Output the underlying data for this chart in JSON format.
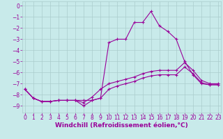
{
  "xlabel": "Windchill (Refroidissement éolien,°C)",
  "bg_color": "#c8eaea",
  "grid_color": "#aacccc",
  "line_color": "#990099",
  "x_ticks": [
    0,
    1,
    2,
    3,
    4,
    5,
    6,
    7,
    8,
    9,
    10,
    11,
    12,
    13,
    14,
    15,
    16,
    17,
    18,
    19,
    20,
    21,
    22,
    23
  ],
  "y_ticks": [
    0,
    -1,
    -2,
    -3,
    -4,
    -5,
    -6,
    -7,
    -8,
    -9
  ],
  "xlim": [
    -0.3,
    23.3
  ],
  "ylim": [
    -9.6,
    0.4
  ],
  "line1_x": [
    0,
    1,
    2,
    3,
    4,
    5,
    6,
    7,
    8,
    9,
    10,
    11,
    12,
    13,
    14,
    15,
    16,
    17,
    18,
    19,
    20,
    21,
    22,
    23
  ],
  "line1_y": [
    -7.5,
    -8.3,
    -8.6,
    -8.6,
    -8.5,
    -8.5,
    -8.5,
    -9.0,
    -8.5,
    -8.3,
    -3.3,
    -3.0,
    -3.0,
    -1.5,
    -1.5,
    -0.5,
    -1.8,
    -2.3,
    -3.0,
    -5.0,
    -6.2,
    -7.0,
    -7.1,
    -7.1
  ],
  "line2_x": [
    0,
    1,
    2,
    3,
    4,
    5,
    6,
    7,
    8,
    9,
    10,
    11,
    12,
    13,
    14,
    15,
    16,
    17,
    18,
    19,
    20,
    21,
    22,
    23
  ],
  "line2_y": [
    -7.5,
    -8.3,
    -8.6,
    -8.6,
    -8.5,
    -8.5,
    -8.5,
    -8.5,
    -8.5,
    -8.3,
    -7.5,
    -7.2,
    -7.0,
    -6.8,
    -6.5,
    -6.3,
    -6.2,
    -6.2,
    -6.2,
    -5.5,
    -6.1,
    -6.9,
    -7.1,
    -7.1
  ],
  "line3_x": [
    0,
    1,
    2,
    3,
    4,
    5,
    6,
    7,
    8,
    9,
    10,
    11,
    12,
    13,
    14,
    15,
    16,
    17,
    18,
    19,
    20,
    21,
    22,
    23
  ],
  "line3_y": [
    -7.5,
    -8.3,
    -8.6,
    -8.6,
    -8.5,
    -8.5,
    -8.5,
    -8.7,
    -8.2,
    -7.5,
    -7.0,
    -6.8,
    -6.6,
    -6.4,
    -6.1,
    -5.9,
    -5.8,
    -5.8,
    -5.8,
    -5.1,
    -5.8,
    -6.7,
    -7.0,
    -7.0
  ],
  "marker": "+",
  "markersize": 3,
  "linewidth": 0.8,
  "tick_fontsize": 5.5,
  "label_fontsize": 6.5
}
